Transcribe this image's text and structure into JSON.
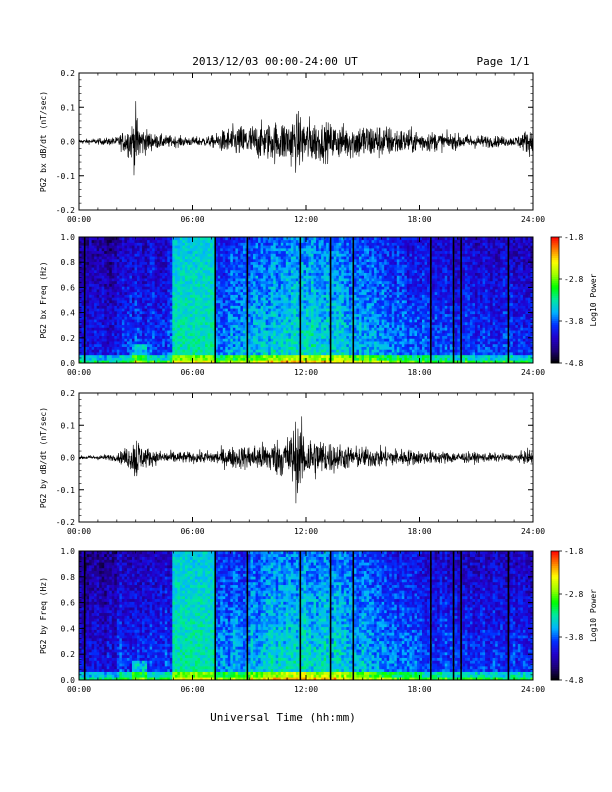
{
  "title": "2013/12/03  00:00-24:00 UT",
  "page_label": "Page 1/1",
  "xlabel": "Universal Time (hh:mm)",
  "colors": {
    "trace": "#000000",
    "axes": "#000000",
    "background": "#ffffff"
  },
  "chart_data": [
    {
      "type": "line",
      "ylabel": "PG2 bx dB/dt (nT/sec)",
      "xlim": [
        0,
        24
      ],
      "ylim": [
        -0.2,
        0.2
      ],
      "x_tick_labels": [
        "00:00",
        "06:00",
        "12:00",
        "18:00",
        "24:00"
      ],
      "y_tick_labels": [
        "0.2",
        "0.1",
        "0.0",
        "-0.1",
        "-0.2"
      ],
      "envelope": {
        "x": [
          0,
          1,
          2,
          2.8,
          3.0,
          3.3,
          4.0,
          5.0,
          6.0,
          7.0,
          8.0,
          9.0,
          10.0,
          11.0,
          11.5,
          12.0,
          13.0,
          14.0,
          15.0,
          16.0,
          17.0,
          18.0,
          19.0,
          20.0,
          21.0,
          22.0,
          23.0,
          23.8,
          24.0
        ],
        "amplitude": [
          0.006,
          0.008,
          0.012,
          0.05,
          0.09,
          0.04,
          0.02,
          0.015,
          0.012,
          0.015,
          0.04,
          0.045,
          0.05,
          0.06,
          0.075,
          0.065,
          0.05,
          0.045,
          0.05,
          0.045,
          0.035,
          0.03,
          0.025,
          0.02,
          0.018,
          0.015,
          0.012,
          0.035,
          0.04
        ]
      }
    },
    {
      "type": "heatmap",
      "ylabel": "PG2 bx Freq (Hz)",
      "xlim": [
        0,
        24
      ],
      "ylim": [
        0,
        1.0
      ],
      "x_tick_labels": [
        "00:00",
        "06:00",
        "12:00",
        "18:00",
        "24:00"
      ],
      "y_tick_labels": [
        "1.0",
        "0.8",
        "0.6",
        "0.4",
        "0.2",
        "0.0"
      ],
      "colorbar": {
        "label": "Log10 Power",
        "range": [
          -4.8,
          -1.8
        ],
        "tick_labels": [
          "-1.8",
          "-2.8",
          "-3.8",
          "-4.8"
        ]
      },
      "bright_band_hours": [
        5.0,
        7.2
      ],
      "gap_lines_hours": [
        0.3,
        7.2,
        8.9,
        11.7,
        13.3,
        14.5,
        18.6,
        19.8,
        20.2,
        22.7
      ],
      "colors": [
        "#000000",
        "#1e007a",
        "#2200cc",
        "#0030ff",
        "#00b4ff",
        "#00e8a0",
        "#00ff00",
        "#a0ff00",
        "#ffff00",
        "#ff8000",
        "#ff0000"
      ]
    },
    {
      "type": "line",
      "ylabel": "PG2 by dB/dt (nT/sec)",
      "xlim": [
        0,
        24
      ],
      "ylim": [
        -0.2,
        0.2
      ],
      "x_tick_labels": [
        "00:00",
        "06:00",
        "12:00",
        "18:00",
        "24:00"
      ],
      "y_tick_labels": [
        "0.2",
        "0.1",
        "0.0",
        "-0.1",
        "-0.2"
      ],
      "envelope": {
        "x": [
          0,
          1,
          2,
          2.8,
          3.0,
          3.3,
          4.0,
          5.0,
          6.0,
          7.0,
          8.0,
          9.0,
          10.0,
          11.0,
          11.5,
          12.0,
          13.0,
          14.0,
          15.0,
          16.0,
          17.0,
          18.0,
          19.0,
          20.0,
          21.0,
          22.0,
          23.0,
          23.8,
          24.0
        ],
        "amplitude": [
          0.005,
          0.007,
          0.01,
          0.04,
          0.075,
          0.035,
          0.02,
          0.018,
          0.015,
          0.02,
          0.03,
          0.035,
          0.045,
          0.06,
          0.11,
          0.07,
          0.05,
          0.035,
          0.03,
          0.028,
          0.025,
          0.02,
          0.018,
          0.016,
          0.014,
          0.012,
          0.01,
          0.02,
          0.022
        ]
      }
    },
    {
      "type": "heatmap",
      "ylabel": "PG2 by Freq (Hz)",
      "xlim": [
        0,
        24
      ],
      "ylim": [
        0,
        1.0
      ],
      "x_tick_labels": [
        "00:00",
        "06:00",
        "12:00",
        "18:00",
        "24:00"
      ],
      "y_tick_labels": [
        "1.0",
        "0.8",
        "0.6",
        "0.4",
        "0.2",
        "0.0"
      ],
      "colorbar": {
        "label": "Log10 Power",
        "range": [
          -4.8,
          -1.8
        ],
        "tick_labels": [
          "-1.8",
          "-2.8",
          "-3.8",
          "-4.8"
        ]
      },
      "bright_band_hours": [
        5.0,
        7.2
      ],
      "gap_lines_hours": [
        0.3,
        7.2,
        8.9,
        11.7,
        13.3,
        14.5,
        18.6,
        19.8,
        20.2,
        22.7
      ],
      "colors": [
        "#000000",
        "#1e007a",
        "#2200cc",
        "#0030ff",
        "#00b4ff",
        "#00e8a0",
        "#00ff00",
        "#a0ff00",
        "#ffff00",
        "#ff8000",
        "#ff0000"
      ]
    }
  ]
}
